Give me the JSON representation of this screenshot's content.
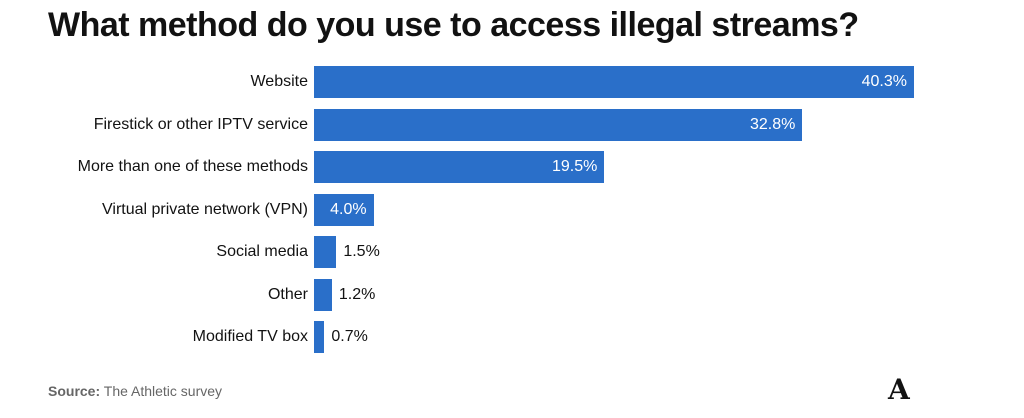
{
  "chart_data": {
    "type": "bar",
    "orientation": "horizontal",
    "title": "What method do you use to access illegal streams?",
    "categories": [
      "Website",
      "Firestick or other IPTV service",
      "More than one of these methods",
      "Virtual private network (VPN)",
      "Social media",
      "Other",
      "Modified TV box"
    ],
    "values": [
      40.3,
      32.8,
      19.5,
      4.0,
      1.5,
      1.2,
      0.7
    ],
    "value_labels": [
      "40.3%",
      "32.8%",
      "19.5%",
      "4.0%",
      "1.5%",
      "1.2%",
      "0.7%"
    ],
    "xlim": [
      0,
      40.3
    ],
    "grid": false,
    "bar_color": "#2a6fc9"
  },
  "source": {
    "label": "Source:",
    "text": " The Athletic survey"
  },
  "logo": "A"
}
